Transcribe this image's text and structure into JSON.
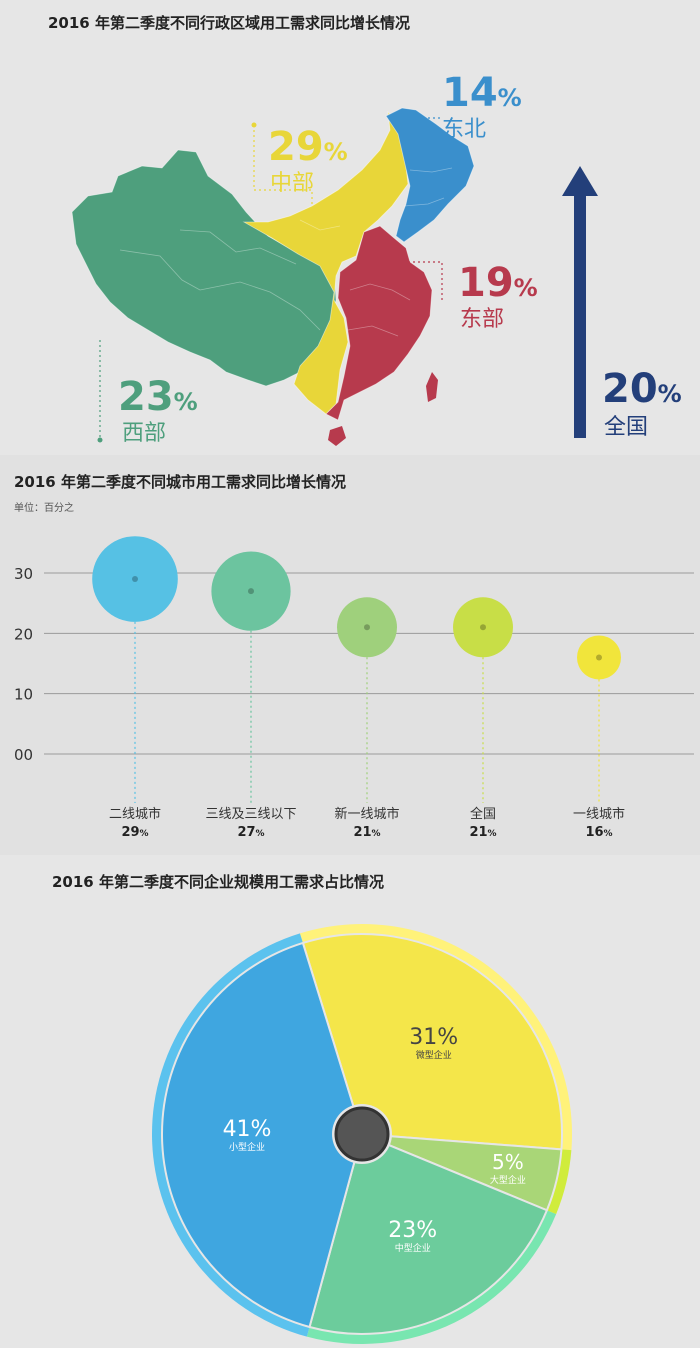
{
  "colors": {
    "northeast": "#3a8fcc",
    "central": "#e8d639",
    "east": "#b73a4d",
    "west": "#4e9f7d",
    "national": "#233f7a"
  },
  "chart_data": [
    {
      "type": "map",
      "title": "2016 年第二季度不同行政区域用工需求同比增长情况",
      "regions": [
        {
          "name": "东北",
          "value": "14",
          "unit": "%"
        },
        {
          "name": "中部",
          "value": "29",
          "unit": "%"
        },
        {
          "name": "东部",
          "value": "19",
          "unit": "%"
        },
        {
          "name": "西部",
          "value": "23",
          "unit": "%"
        },
        {
          "name": "全国",
          "value": "20",
          "unit": "%"
        }
      ]
    },
    {
      "type": "scatter",
      "title": "2016 年第二季度不同城市用工需求同比增长情况",
      "unit_label": "单位：百分之",
      "ylim": [
        0,
        30
      ],
      "yticks": [
        "00",
        "10",
        "20",
        "30"
      ],
      "categories": [
        "二线城市",
        "三线及三线以下",
        "新一线城市",
        "全国",
        "一线城市"
      ],
      "values": [
        29,
        27,
        21,
        21,
        16
      ],
      "value_labels": [
        "29",
        "27",
        "21",
        "21",
        "16"
      ],
      "value_unit": "%",
      "colors": [
        "#56c1e4",
        "#6cc49f",
        "#9fd07c",
        "#c8de47",
        "#f1e53b"
      ]
    },
    {
      "type": "pie",
      "title": "2016 年第二季度不同企业规模用工需求占比情况",
      "slices": [
        {
          "label": "微型企业",
          "value": 31,
          "text": "31%",
          "color": "#f4e64a",
          "rim": "#fff27a"
        },
        {
          "label": "大型企业",
          "value": 5,
          "text": "5%",
          "color": "#a9d677",
          "rim": "#d0ec3c"
        },
        {
          "label": "中型企业",
          "value": 23,
          "text": "23%",
          "color": "#6ccc9c",
          "rim": "#78e6b0"
        },
        {
          "label": "小型企业",
          "value": 41,
          "text": "41%",
          "color": "#3fa6e0",
          "rim": "#5bc2ee"
        }
      ]
    }
  ]
}
